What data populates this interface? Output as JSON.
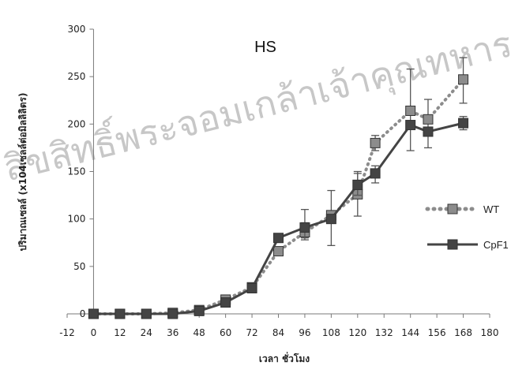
{
  "chart_data": {
    "type": "line",
    "title": "HS",
    "xlabel": "เวลา ชั่วโมง",
    "ylabel": "ปริมาณเซลล์ (x104เซลล์ต่อมิลลิลิตร)",
    "xlim": [
      -12,
      180
    ],
    "ylim": [
      0,
      300
    ],
    "x_ticks": [
      -12,
      0,
      12,
      24,
      36,
      48,
      60,
      72,
      84,
      96,
      108,
      120,
      132,
      144,
      156,
      168,
      180
    ],
    "y_ticks": [
      0,
      50,
      100,
      150,
      200,
      250,
      300
    ],
    "grid": false,
    "legend_position": "right",
    "series": [
      {
        "name": "WT",
        "style": "dotted",
        "color": "#8c8c8c",
        "points": [
          {
            "x": 0,
            "y": 0
          },
          {
            "x": 12,
            "y": 0
          },
          {
            "x": 24,
            "y": 0
          },
          {
            "x": 36,
            "y": 1
          },
          {
            "x": 48,
            "y": 4
          },
          {
            "x": 60,
            "y": 15
          },
          {
            "x": 72,
            "y": 28
          },
          {
            "x": 84,
            "y": 66
          },
          {
            "x": 96,
            "y": 86
          },
          {
            "x": 108,
            "y": 104
          },
          {
            "x": 120,
            "y": 126
          },
          {
            "x": 128,
            "y": 180
          },
          {
            "x": 144,
            "y": 214
          },
          {
            "x": 152,
            "y": 205
          },
          {
            "x": 168,
            "y": 247
          }
        ],
        "errors": [
          {
            "x": 84,
            "y": 66,
            "lo": 64,
            "hi": 70
          },
          {
            "x": 96,
            "y": 86,
            "lo": 80,
            "hi": 110
          },
          {
            "x": 108,
            "y": 104,
            "lo": 72,
            "hi": 130
          },
          {
            "x": 120,
            "y": 126,
            "lo": 103,
            "hi": 148
          },
          {
            "x": 128,
            "y": 180,
            "lo": 172,
            "hi": 188
          },
          {
            "x": 144,
            "y": 214,
            "lo": 172,
            "hi": 258
          },
          {
            "x": 152,
            "y": 205,
            "lo": 175,
            "hi": 226
          },
          {
            "x": 168,
            "y": 247,
            "lo": 222,
            "hi": 270
          }
        ]
      },
      {
        "name": "CpF1",
        "style": "solid",
        "color": "#444444",
        "points": [
          {
            "x": 0,
            "y": 0
          },
          {
            "x": 12,
            "y": 0
          },
          {
            "x": 24,
            "y": 0
          },
          {
            "x": 36,
            "y": 0
          },
          {
            "x": 48,
            "y": 3
          },
          {
            "x": 60,
            "y": 12
          },
          {
            "x": 72,
            "y": 27
          },
          {
            "x": 84,
            "y": 80
          },
          {
            "x": 96,
            "y": 91
          },
          {
            "x": 108,
            "y": 100
          },
          {
            "x": 120,
            "y": 136
          },
          {
            "x": 128,
            "y": 148
          },
          {
            "x": 144,
            "y": 199
          },
          {
            "x": 152,
            "y": 192
          },
          {
            "x": 168,
            "y": 201
          }
        ],
        "errors": [
          {
            "x": 84,
            "y": 80,
            "lo": 76,
            "hi": 83
          },
          {
            "x": 96,
            "y": 91,
            "lo": 78,
            "hi": 96
          },
          {
            "x": 120,
            "y": 136,
            "lo": 125,
            "hi": 150
          },
          {
            "x": 128,
            "y": 148,
            "lo": 138,
            "hi": 156
          },
          {
            "x": 144,
            "y": 199,
            "lo": 196,
            "hi": 202
          },
          {
            "x": 152,
            "y": 192,
            "lo": 188,
            "hi": 196
          },
          {
            "x": 168,
            "y": 201,
            "lo": 194,
            "hi": 208
          }
        ]
      }
    ]
  },
  "watermark": {
    "text": "ลิขสิทธิ์พระจอมเกล้าเจ้าคุณทหาร",
    "color": "#9a9a9a"
  }
}
